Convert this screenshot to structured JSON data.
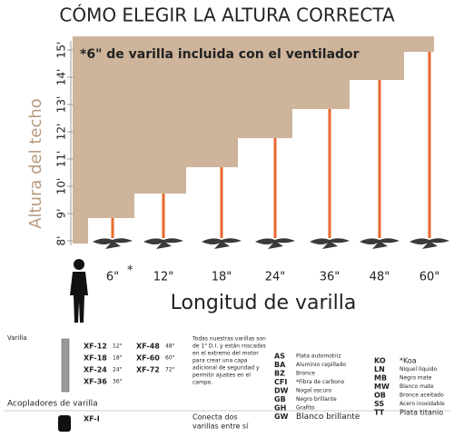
{
  "header": {
    "title": "CÓMO ELEGIR LA ALTURA CORRECTA",
    "note": "*6\" de varilla incluida con el ventilador"
  },
  "diagram": {
    "y_axis_label": "Altura del techo",
    "ceiling_heights": [
      "8'",
      "9'",
      "10'",
      "11'",
      "12'",
      "13'",
      "14'",
      "15'"
    ],
    "rod_lengths": [
      "6\"",
      "12\"",
      "18\"",
      "24\"",
      "36\"",
      "48\"",
      "60\""
    ],
    "asterisk": "*",
    "x_axis_label": "Longitud de varilla"
  },
  "rods_section": {
    "title": "Varilla",
    "models": [
      {
        "code": "XF-12",
        "length": "12\""
      },
      {
        "code": "XF-18",
        "length": "18\""
      },
      {
        "code": "XF-24",
        "length": "24\""
      },
      {
        "code": "XF-36",
        "length": "36\""
      },
      {
        "code": "XF-48",
        "length": "48\""
      },
      {
        "code": "XF-60",
        "length": "60\""
      },
      {
        "code": "XF-72",
        "length": "72\""
      }
    ],
    "description": [
      "Todas nuestras varillas son",
      "de 1\" D.I. y están roscadas",
      "en el extremo del motor",
      "para crear una capa",
      "adicional de seguridad y",
      "permitir ajustes en el",
      "campo."
    ]
  },
  "finishes": {
    "left": [
      {
        "code": "AS",
        "name": "Plata automotriz"
      },
      {
        "code": "BA",
        "name": "Aluminio cepillado"
      },
      {
        "code": "BZ",
        "name": "Bronce"
      },
      {
        "code": "CFI",
        "name": "*Fibra de carbono"
      },
      {
        "code": "DW",
        "name": "Nogal oscuro"
      },
      {
        "code": "GB",
        "name": "Negro brillante"
      },
      {
        "code": "GH",
        "name": "Grafito"
      },
      {
        "code": "GW",
        "name": "Blanco brillante"
      }
    ],
    "right": [
      {
        "code": "KO",
        "name": "*Koa"
      },
      {
        "code": "LN",
        "name": "Níquel líquido"
      },
      {
        "code": "MB",
        "name": "Negro mate"
      },
      {
        "code": "MW",
        "name": "Blanco mate"
      },
      {
        "code": "OB",
        "name": "Bronce aceitado"
      },
      {
        "code": "SS",
        "name": "Acero inoxidable"
      },
      {
        "code": "TT",
        "name": "Plata titanio"
      }
    ]
  },
  "couplers_section": {
    "title": "Acopladores de varilla",
    "code": "XF-I",
    "description": [
      "Conecta dos",
      "varillas entre sí"
    ]
  }
}
